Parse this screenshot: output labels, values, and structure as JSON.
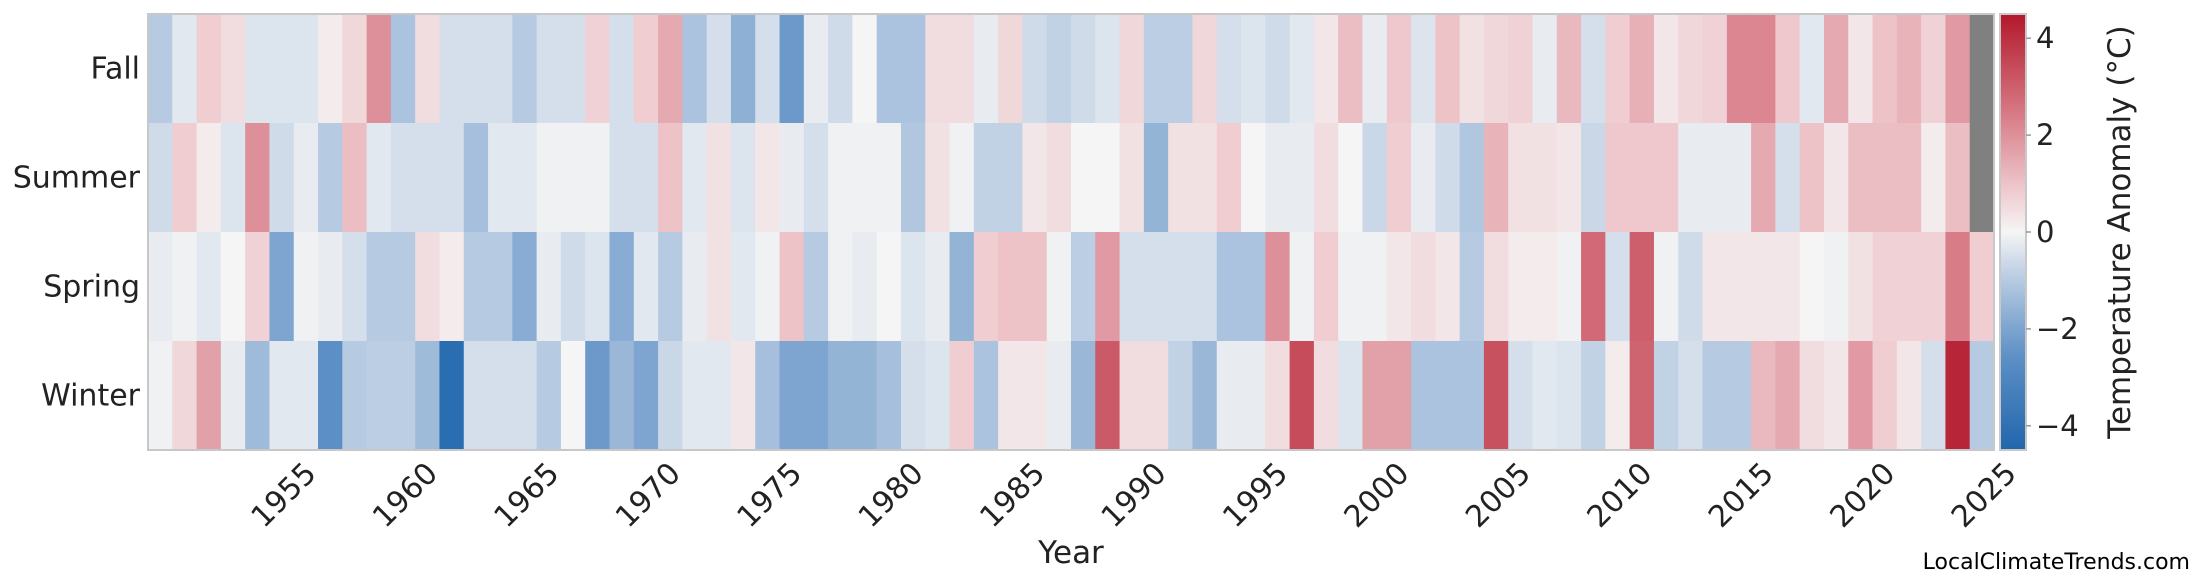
{
  "chart_data": {
    "type": "heatmap",
    "title": "",
    "xlabel": "Year",
    "ylabel": "",
    "y_categories": [
      "Fall",
      "Summer",
      "Spring",
      "Winter"
    ],
    "x_range": [
      1950,
      2025
    ],
    "x_ticks": [
      "1955",
      "1960",
      "1965",
      "1970",
      "1975",
      "1980",
      "1985",
      "1990",
      "1995",
      "2000",
      "2005",
      "2010",
      "2015",
      "2020",
      "2025"
    ],
    "colorbar": {
      "label": "Temperature Anomaly (°C)",
      "range": [
        -4.5,
        4.5
      ],
      "ticks": [
        "−4",
        "−2",
        "0",
        "2",
        "4"
      ],
      "colormap": "RdBu_r",
      "missing_color": "#808080"
    },
    "values": {
      "Fall": [
        -1.0,
        -0.3,
        0.8,
        0.5,
        -0.4,
        -0.4,
        -0.4,
        0.2,
        0.6,
        2.0,
        -1.2,
        0.5,
        -0.5,
        -0.5,
        -0.5,
        -1.0,
        -0.5,
        -0.5,
        0.7,
        -0.5,
        0.8,
        1.5,
        -1.2,
        -0.5,
        -1.7,
        -0.5,
        -2.3,
        -0.2,
        -0.6,
        0.0,
        -1.2,
        -1.2,
        0.5,
        0.5,
        -0.2,
        0.6,
        -0.6,
        -0.8,
        -0.6,
        -0.4,
        0.6,
        -0.9,
        -0.9,
        0.6,
        -0.5,
        -0.4,
        -0.6,
        -0.3,
        0.3,
        1.1,
        -0.2,
        0.9,
        -0.4,
        1.0,
        0.4,
        0.6,
        0.7,
        -0.2,
        1.2,
        -0.5,
        0.8,
        1.4,
        0.3,
        0.6,
        0.7,
        2.2,
        2.2,
        0.9,
        -0.3,
        1.5,
        0.3,
        1.0,
        1.3,
        0.7,
        1.8,
        null
      ],
      "Summer": [
        -0.6,
        0.8,
        0.2,
        -0.4,
        2.0,
        -0.6,
        -0.2,
        -1.0,
        1.1,
        -0.3,
        -0.5,
        -0.5,
        -0.5,
        -1.3,
        -0.3,
        -0.3,
        -0.1,
        -0.1,
        -0.1,
        -0.5,
        -0.5,
        1.0,
        -0.3,
        0.4,
        -0.4,
        0.3,
        -0.2,
        -0.5,
        -0.1,
        -0.1,
        -0.1,
        -1.1,
        0.4,
        -0.1,
        -0.8,
        -0.8,
        0.3,
        0.5,
        0.0,
        0.0,
        0.4,
        -1.6,
        0.4,
        0.4,
        0.8,
        0.0,
        -0.2,
        -0.2,
        0.5,
        0.0,
        -0.7,
        0.8,
        -0.2,
        -0.6,
        -1.1,
        1.3,
        0.4,
        0.4,
        0.3,
        -0.7,
        0.9,
        0.9,
        0.9,
        -0.2,
        -0.2,
        -0.2,
        1.5,
        -0.5,
        1.0,
        0.3,
        1.1,
        1.1,
        1.1,
        0.2,
        1.1,
        null
      ],
      "Spring": [
        -0.2,
        -0.1,
        -0.3,
        0.0,
        0.7,
        -2.0,
        -0.1,
        -0.2,
        -0.5,
        -1.0,
        -1.0,
        0.5,
        0.2,
        -1.0,
        -1.0,
        -1.8,
        -0.2,
        -0.6,
        -0.4,
        -1.8,
        -0.3,
        -1.0,
        -0.2,
        0.4,
        -0.3,
        -0.1,
        1.0,
        -1.0,
        -0.1,
        -0.2,
        0.0,
        -0.4,
        -0.2,
        -1.6,
        0.8,
        1.0,
        1.0,
        -0.1,
        -0.9,
        1.8,
        -0.5,
        -0.5,
        -0.5,
        -0.5,
        -1.2,
        -1.2,
        2.0,
        -0.1,
        0.8,
        -0.1,
        -0.1,
        0.3,
        0.5,
        0.3,
        -1.0,
        0.5,
        0.2,
        0.2,
        -0.1,
        2.8,
        -0.5,
        3.0,
        -0.1,
        -0.6,
        0.3,
        0.3,
        0.3,
        0.3,
        0.0,
        -0.1,
        0.4,
        0.7,
        0.7,
        0.7,
        2.4,
        0.8
      ],
      "Winter": [
        -0.1,
        0.6,
        1.7,
        -0.2,
        -1.4,
        -0.3,
        -0.3,
        -2.6,
        -1.0,
        -0.9,
        -0.9,
        -1.4,
        -4.2,
        -0.5,
        -0.5,
        -0.5,
        -1.0,
        0.0,
        -2.3,
        -1.5,
        -2.0,
        -0.7,
        -0.3,
        -0.3,
        0.3,
        -1.3,
        -2.0,
        -2.0,
        -1.6,
        -1.6,
        -1.3,
        -0.5,
        -0.4,
        0.8,
        -1.2,
        0.3,
        0.3,
        -0.2,
        -1.5,
        3.1,
        0.5,
        0.5,
        -0.8,
        -1.5,
        -0.2,
        -0.2,
        0.5,
        3.4,
        0.5,
        -0.4,
        1.7,
        1.7,
        -1.2,
        -1.2,
        -1.2,
        3.3,
        -0.5,
        -0.3,
        -0.4,
        -0.8,
        0.2,
        2.9,
        -0.8,
        -0.5,
        -1.0,
        -1.0,
        1.2,
        1.5,
        0.5,
        0.3,
        1.8,
        0.8,
        0.3,
        -0.5,
        4.2,
        -1.0
      ]
    }
  },
  "footer": {
    "credit": "LocalClimateTrends.com"
  }
}
